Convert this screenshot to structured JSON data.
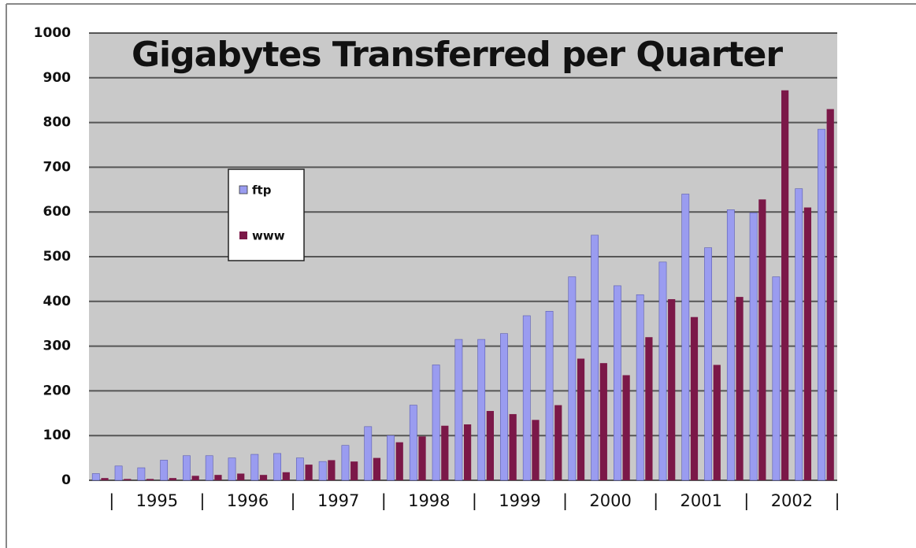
{
  "chart_data": {
    "type": "bar",
    "title": "Gigabytes Transferred per Quarter",
    "categories": [
      null,
      null,
      null,
      null,
      null,
      null,
      null,
      null,
      null,
      null,
      null,
      null,
      null,
      null,
      null,
      null,
      null,
      null,
      null,
      null,
      null,
      null,
      null,
      null,
      null,
      null,
      null,
      null,
      null,
      null,
      null,
      null,
      null
    ],
    "year_labels": [
      "1995",
      "1996",
      "1997",
      "1998",
      "1999",
      "2000",
      "2001",
      "2002"
    ],
    "separator": "|",
    "series": [
      {
        "name": "ftp",
        "color": "#9a9cf0",
        "values": [
          15,
          32,
          28,
          45,
          55,
          55,
          50,
          58,
          60,
          50,
          42,
          78,
          120,
          100,
          168,
          258,
          315,
          315,
          328,
          368,
          378,
          455,
          548,
          435,
          415,
          488,
          640,
          520,
          605,
          598,
          455,
          652,
          785
        ]
      },
      {
        "name": "www",
        "color": "#7b1848",
        "values": [
          5,
          3,
          3,
          5,
          10,
          12,
          15,
          12,
          18,
          35,
          45,
          42,
          50,
          85,
          98,
          122,
          125,
          155,
          148,
          135,
          168,
          272,
          262,
          235,
          320,
          405,
          365,
          258,
          410,
          628,
          872,
          610,
          830
        ]
      }
    ],
    "ylim": [
      0,
      1000
    ],
    "yticks": [
      0,
      100,
      200,
      300,
      400,
      500,
      600,
      700,
      800,
      900,
      1000
    ],
    "grid": true
  }
}
